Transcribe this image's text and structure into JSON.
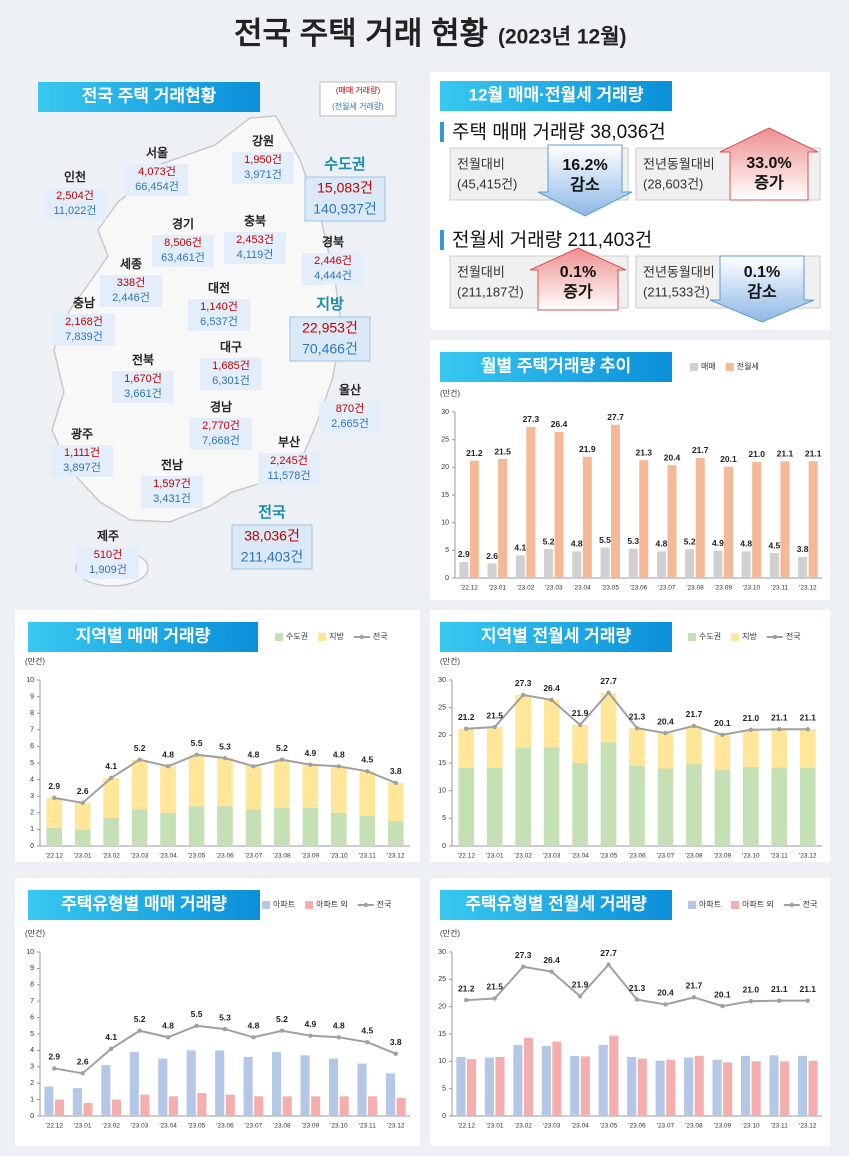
{
  "header": {
    "title": "전국 주택 거래 현황",
    "subtitle": "(2023년 12월)"
  },
  "map": {
    "title": "전국 주택 거래현황",
    "legend": [
      "(매매 거래량)",
      "(전월세 거래량)"
    ],
    "regions": [
      {
        "name": "강원",
        "sale": "1,950건",
        "rent": "3,971건"
      },
      {
        "name": "서울",
        "sale": "4,073건",
        "rent": "66,454건"
      },
      {
        "name": "인천",
        "sale": "2,504건",
        "rent": "11,022건"
      },
      {
        "name": "경기",
        "sale": "8,506건",
        "rent": "63,461건"
      },
      {
        "name": "충북",
        "sale": "2,453건",
        "rent": "4,119건"
      },
      {
        "name": "경북",
        "sale": "2,446건",
        "rent": "4,444건"
      },
      {
        "name": "세종",
        "sale": "338건",
        "rent": "2,446건"
      },
      {
        "name": "대전",
        "sale": "1,140건",
        "rent": "6,537건"
      },
      {
        "name": "충남",
        "sale": "2,168건",
        "rent": "7,839건"
      },
      {
        "name": "전북",
        "sale": "1,670건",
        "rent": "3,661건"
      },
      {
        "name": "대구",
        "sale": "1,685건",
        "rent": "6,301건"
      },
      {
        "name": "울산",
        "sale": "870건",
        "rent": "2,665건"
      },
      {
        "name": "경남",
        "sale": "2,770건",
        "rent": "7,668건"
      },
      {
        "name": "광주",
        "sale": "1,111건",
        "rent": "3,897건"
      },
      {
        "name": "부산",
        "sale": "2,245건",
        "rent": "11,578건"
      },
      {
        "name": "전남",
        "sale": "1,597건",
        "rent": "3,431건"
      },
      {
        "name": "제주",
        "sale": "510건",
        "rent": "1,909건"
      }
    ],
    "totals": [
      {
        "name": "수도권",
        "sale": "15,083건",
        "rent": "140,937건"
      },
      {
        "name": "지방",
        "sale": "22,953건",
        "rent": "70,466건"
      },
      {
        "name": "전국",
        "sale": "38,036건",
        "rent": "211,403건"
      }
    ]
  },
  "summary": {
    "title": "12월 매매·전월세 거래량",
    "sale": {
      "heading": "주택 매매 거래량 38,036건",
      "items": [
        {
          "label": "전월대비",
          "base": "(45,415건)",
          "rate": "16.2%",
          "dir": "감소"
        },
        {
          "label": "전년동월대비",
          "base": "(28,603건)",
          "rate": "33.0%",
          "dir": "증가"
        }
      ]
    },
    "rent": {
      "heading": "전월세 거래량 211,403건",
      "items": [
        {
          "label": "전월대비",
          "base": "(211,187건)",
          "rate": "0.1%",
          "dir": "증가"
        },
        {
          "label": "전년동월대비",
          "base": "(211,533건)",
          "rate": "0.1%",
          "dir": "감소"
        }
      ]
    }
  },
  "chart_data": [
    {
      "type": "bar",
      "stacked": false,
      "title": "월별 주택거래량 추이",
      "ylabel": "(만건)",
      "categories": [
        "'22.12",
        "'23.01",
        "'23.02",
        "'23.03",
        "'23.04",
        "'23.05",
        "'23.06",
        "'23.07",
        "'23.08",
        "'23.09",
        "'23.10",
        "'23.11",
        "'23.12"
      ],
      "ylim": [
        0,
        30
      ],
      "yticks": [
        0,
        5,
        10,
        15,
        20,
        25,
        30
      ],
      "grid": false,
      "series": [
        {
          "name": "매매",
          "type": "bar",
          "color": "#d0d0d0",
          "data_labels": true,
          "values": [
            2.9,
            2.6,
            4.1,
            5.2,
            4.8,
            5.5,
            5.3,
            4.8,
            5.2,
            4.9,
            4.8,
            4.5,
            3.8
          ]
        },
        {
          "name": "전월세",
          "type": "bar",
          "color": "#f5b997",
          "data_labels": true,
          "values": [
            21.2,
            21.5,
            27.3,
            26.4,
            21.9,
            27.7,
            21.3,
            20.4,
            21.7,
            20.1,
            21.0,
            21.1,
            21.1
          ],
          "value_labels": [
            "21.2",
            "21.5",
            "27.3",
            "26.4",
            "21.9",
            "27.7",
            "21.3",
            "20.4",
            "21.7",
            "20.1",
            "21.0",
            "21.1",
            "21.1"
          ]
        }
      ]
    },
    {
      "type": "bar",
      "stacked": true,
      "title": "지역별 매매 거래량",
      "ylabel": "(만건)",
      "categories": [
        "'22.12",
        "'23.01",
        "'23.02",
        "'23.03",
        "'23.04",
        "'23.05",
        "'23.06",
        "'23.07",
        "'23.08",
        "'23.09",
        "'23.10",
        "'23.11",
        "'23.12"
      ],
      "ylim": [
        0,
        10
      ],
      "yticks": [
        0,
        1,
        2,
        3,
        4,
        5,
        6,
        7,
        8,
        9,
        10
      ],
      "grid": false,
      "series": [
        {
          "name": "수도권",
          "type": "bar",
          "color": "#c5e0b4",
          "values": [
            1.1,
            1.0,
            1.7,
            2.2,
            2.0,
            2.4,
            2.4,
            2.2,
            2.3,
            2.3,
            2.0,
            1.8,
            1.5
          ]
        },
        {
          "name": "지방",
          "type": "bar",
          "color": "#ffe699",
          "values": [
            1.8,
            1.6,
            2.4,
            3.0,
            2.8,
            3.1,
            2.9,
            2.6,
            2.9,
            2.6,
            2.8,
            2.7,
            2.3
          ]
        },
        {
          "name": "전국",
          "type": "line",
          "color": "#a0a0a0",
          "data_labels": true,
          "values": [
            2.9,
            2.6,
            4.1,
            5.2,
            4.8,
            5.5,
            5.3,
            4.8,
            5.2,
            4.9,
            4.8,
            4.5,
            3.8
          ]
        }
      ]
    },
    {
      "type": "bar",
      "stacked": true,
      "title": "지역별 전월세 거래량",
      "ylabel": "(만건)",
      "categories": [
        "'22.12",
        "'23.01",
        "'23.02",
        "'23.03",
        "'23.04",
        "'23.05",
        "'23.06",
        "'23.07",
        "'23.08",
        "'23.09",
        "'23.10",
        "'23.11",
        "'23.12"
      ],
      "ylim": [
        0,
        30
      ],
      "yticks": [
        0,
        5,
        10,
        15,
        20,
        25,
        30
      ],
      "grid": false,
      "series": [
        {
          "name": "수도권",
          "type": "bar",
          "color": "#c5e0b4",
          "values": [
            14.1,
            14.1,
            17.7,
            17.8,
            15.0,
            18.7,
            14.5,
            14.0,
            14.8,
            13.8,
            14.3,
            14.2,
            14.1
          ]
        },
        {
          "name": "지방",
          "type": "bar",
          "color": "#ffe699",
          "values": [
            7.1,
            7.4,
            9.6,
            8.6,
            6.9,
            9.0,
            6.8,
            6.4,
            6.9,
            6.3,
            6.7,
            6.9,
            7.0
          ]
        },
        {
          "name": "전국",
          "type": "line",
          "color": "#a0a0a0",
          "data_labels": true,
          "values": [
            21.2,
            21.5,
            27.3,
            26.4,
            21.9,
            27.7,
            21.3,
            20.4,
            21.7,
            20.1,
            21.0,
            21.1,
            21.1
          ],
          "value_labels": [
            "21.2",
            "21.5",
            "27.3",
            "26.4",
            "21.9",
            "27.7",
            "21.3",
            "20.4",
            "21.7",
            "20.1",
            "21.0",
            "21.1",
            "21.1"
          ]
        }
      ]
    },
    {
      "type": "bar",
      "stacked": false,
      "title": "주택유형별 매매 거래량",
      "ylabel": "(만건)",
      "categories": [
        "'22.12",
        "'23.01",
        "'23.02",
        "'23.03",
        "'23.04",
        "'23.05",
        "'23.06",
        "'23.07",
        "'23.08",
        "'23.09",
        "'23.10",
        "'23.11",
        "'23.12"
      ],
      "ylim": [
        0,
        10
      ],
      "yticks": [
        0,
        1,
        2,
        3,
        4,
        5,
        6,
        7,
        8,
        9,
        10
      ],
      "grid": false,
      "series": [
        {
          "name": "아파트",
          "type": "bar",
          "color": "#b4c7e7",
          "values": [
            1.8,
            1.7,
            3.1,
            3.9,
            3.5,
            4.0,
            4.0,
            3.6,
            3.9,
            3.7,
            3.5,
            3.2,
            2.6
          ]
        },
        {
          "name": "아파트 외",
          "type": "bar",
          "color": "#f4aeae",
          "values": [
            1.0,
            0.8,
            1.0,
            1.3,
            1.2,
            1.4,
            1.3,
            1.2,
            1.2,
            1.2,
            1.2,
            1.2,
            1.1
          ]
        },
        {
          "name": "전국",
          "type": "line",
          "color": "#a0a0a0",
          "data_labels": true,
          "values": [
            2.9,
            2.6,
            4.1,
            5.2,
            4.8,
            5.5,
            5.3,
            4.8,
            5.2,
            4.9,
            4.8,
            4.5,
            3.8
          ]
        }
      ]
    },
    {
      "type": "bar",
      "stacked": false,
      "title": "주택유형별 전월세 거래량",
      "ylabel": "(만건)",
      "categories": [
        "'22.12",
        "'23.01",
        "'23.02",
        "'23.03",
        "'23.04",
        "'23.05",
        "'23.06",
        "'23.07",
        "'23.08",
        "'23.09",
        "'23.10",
        "'23.11",
        "'23.12"
      ],
      "ylim": [
        0,
        30
      ],
      "yticks": [
        0,
        5,
        10,
        15,
        20,
        25,
        30
      ],
      "grid": false,
      "series": [
        {
          "name": "아파트",
          "type": "bar",
          "color": "#b4c7e7",
          "values": [
            10.8,
            10.7,
            13.0,
            12.8,
            11.0,
            13.0,
            10.8,
            10.1,
            10.7,
            10.3,
            11.0,
            11.1,
            11.0
          ]
        },
        {
          "name": "아파트 외",
          "type": "bar",
          "color": "#f4aeae",
          "values": [
            10.4,
            10.8,
            14.3,
            13.6,
            10.9,
            14.7,
            10.5,
            10.3,
            11.0,
            9.8,
            10.0,
            10.0,
            10.1
          ]
        },
        {
          "name": "전국",
          "type": "line",
          "color": "#a0a0a0",
          "data_labels": true,
          "values": [
            21.2,
            21.5,
            27.3,
            26.4,
            21.9,
            27.7,
            21.3,
            20.4,
            21.7,
            20.1,
            21.0,
            21.1,
            21.1
          ],
          "value_labels": [
            "21.2",
            "21.5",
            "27.3",
            "26.4",
            "21.9",
            "27.7",
            "21.3",
            "20.4",
            "21.7",
            "20.1",
            "21.0",
            "21.1",
            "21.1"
          ]
        }
      ]
    }
  ]
}
